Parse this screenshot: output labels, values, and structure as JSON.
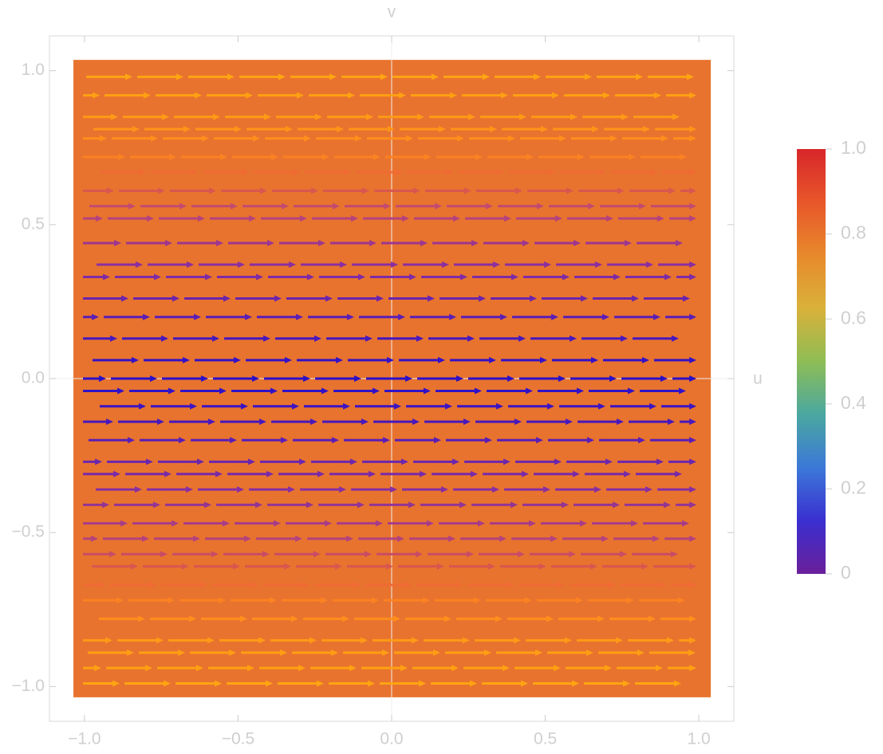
{
  "chart_data": {
    "type": "streamplot",
    "x_label": "u",
    "y_label": "v",
    "xlim": [
      -1.114,
      1.114
    ],
    "ylim": [
      -1.113,
      1.113
    ],
    "xticks": [
      {
        "value": -1,
        "label": "−1.0"
      },
      {
        "value": -0.5,
        "label": "−0.5"
      },
      {
        "value": 0,
        "label": "0.0"
      },
      {
        "value": 0.5,
        "label": "0.5"
      },
      {
        "value": 1,
        "label": "1.0"
      }
    ],
    "yticks": [
      {
        "value": -1,
        "label": "−1.0"
      },
      {
        "value": -0.5,
        "label": "−0.5"
      },
      {
        "value": 0,
        "label": "0.0"
      },
      {
        "value": 0.5,
        "label": "0.5"
      },
      {
        "value": 1,
        "label": "1.0"
      }
    ],
    "region_xlim": [
      -1.036,
      1.039
    ],
    "region_ylim": [
      -1.035,
      1.035
    ],
    "region_color": "#e8732e",
    "streamlines": [
      {
        "y": 0.98,
        "color": "#ffa412"
      },
      {
        "y": 0.92,
        "color": "#ffa012"
      },
      {
        "y": 0.85,
        "color": "#ff9a16"
      },
      {
        "y": 0.81,
        "color": "#ff9418"
      },
      {
        "y": 0.78,
        "color": "#ff8e1c"
      },
      {
        "y": 0.72,
        "color": "#fb8222"
      },
      {
        "y": 0.67,
        "color": "#f06a34"
      },
      {
        "y": 0.61,
        "color": "#d85650"
      },
      {
        "y": 0.56,
        "color": "#c24a70"
      },
      {
        "y": 0.52,
        "color": "#b4427e"
      },
      {
        "y": 0.44,
        "color": "#9c3690"
      },
      {
        "y": 0.37,
        "color": "#8a2ea0"
      },
      {
        "y": 0.33,
        "color": "#7e2aa6"
      },
      {
        "y": 0.26,
        "color": "#6a24ae"
      },
      {
        "y": 0.2,
        "color": "#5a1eb6"
      },
      {
        "y": 0.13,
        "color": "#4618be"
      },
      {
        "y": 0.06,
        "color": "#3412c6"
      },
      {
        "y": 0.0,
        "color": "#2a10c8"
      },
      {
        "y": -0.04,
        "color": "#3012c6"
      },
      {
        "y": -0.09,
        "color": "#3c14c2"
      },
      {
        "y": -0.14,
        "color": "#4818bc"
      },
      {
        "y": -0.2,
        "color": "#5a1eb6"
      },
      {
        "y": -0.27,
        "color": "#6c26ae"
      },
      {
        "y": -0.31,
        "color": "#782aa8"
      },
      {
        "y": -0.36,
        "color": "#862ea2"
      },
      {
        "y": -0.41,
        "color": "#923494"
      },
      {
        "y": -0.47,
        "color": "#a63c88"
      },
      {
        "y": -0.52,
        "color": "#b4427e"
      },
      {
        "y": -0.57,
        "color": "#c84c66"
      },
      {
        "y": -0.61,
        "color": "#d85650"
      },
      {
        "y": -0.67,
        "color": "#f06a34"
      },
      {
        "y": -0.72,
        "color": "#fb8222"
      },
      {
        "y": -0.78,
        "color": "#ff8e1c"
      },
      {
        "y": -0.85,
        "color": "#ff9a16"
      },
      {
        "y": -0.89,
        "color": "#ff9e14"
      },
      {
        "y": -0.94,
        "color": "#ffa012"
      },
      {
        "y": -0.99,
        "color": "#ffa412"
      }
    ],
    "colorbar": {
      "lim": [
        0,
        1
      ],
      "colors": [
        "#6a1f9a",
        "#3a2fd0",
        "#3c78d8",
        "#4aa8a0",
        "#8ebd55",
        "#d9b13a",
        "#e8892c",
        "#e8562a",
        "#d8262a"
      ],
      "ticks": [
        0,
        0.2,
        0.4,
        0.6,
        0.8,
        {
          "value": 1,
          "label": "1.0"
        }
      ]
    }
  }
}
